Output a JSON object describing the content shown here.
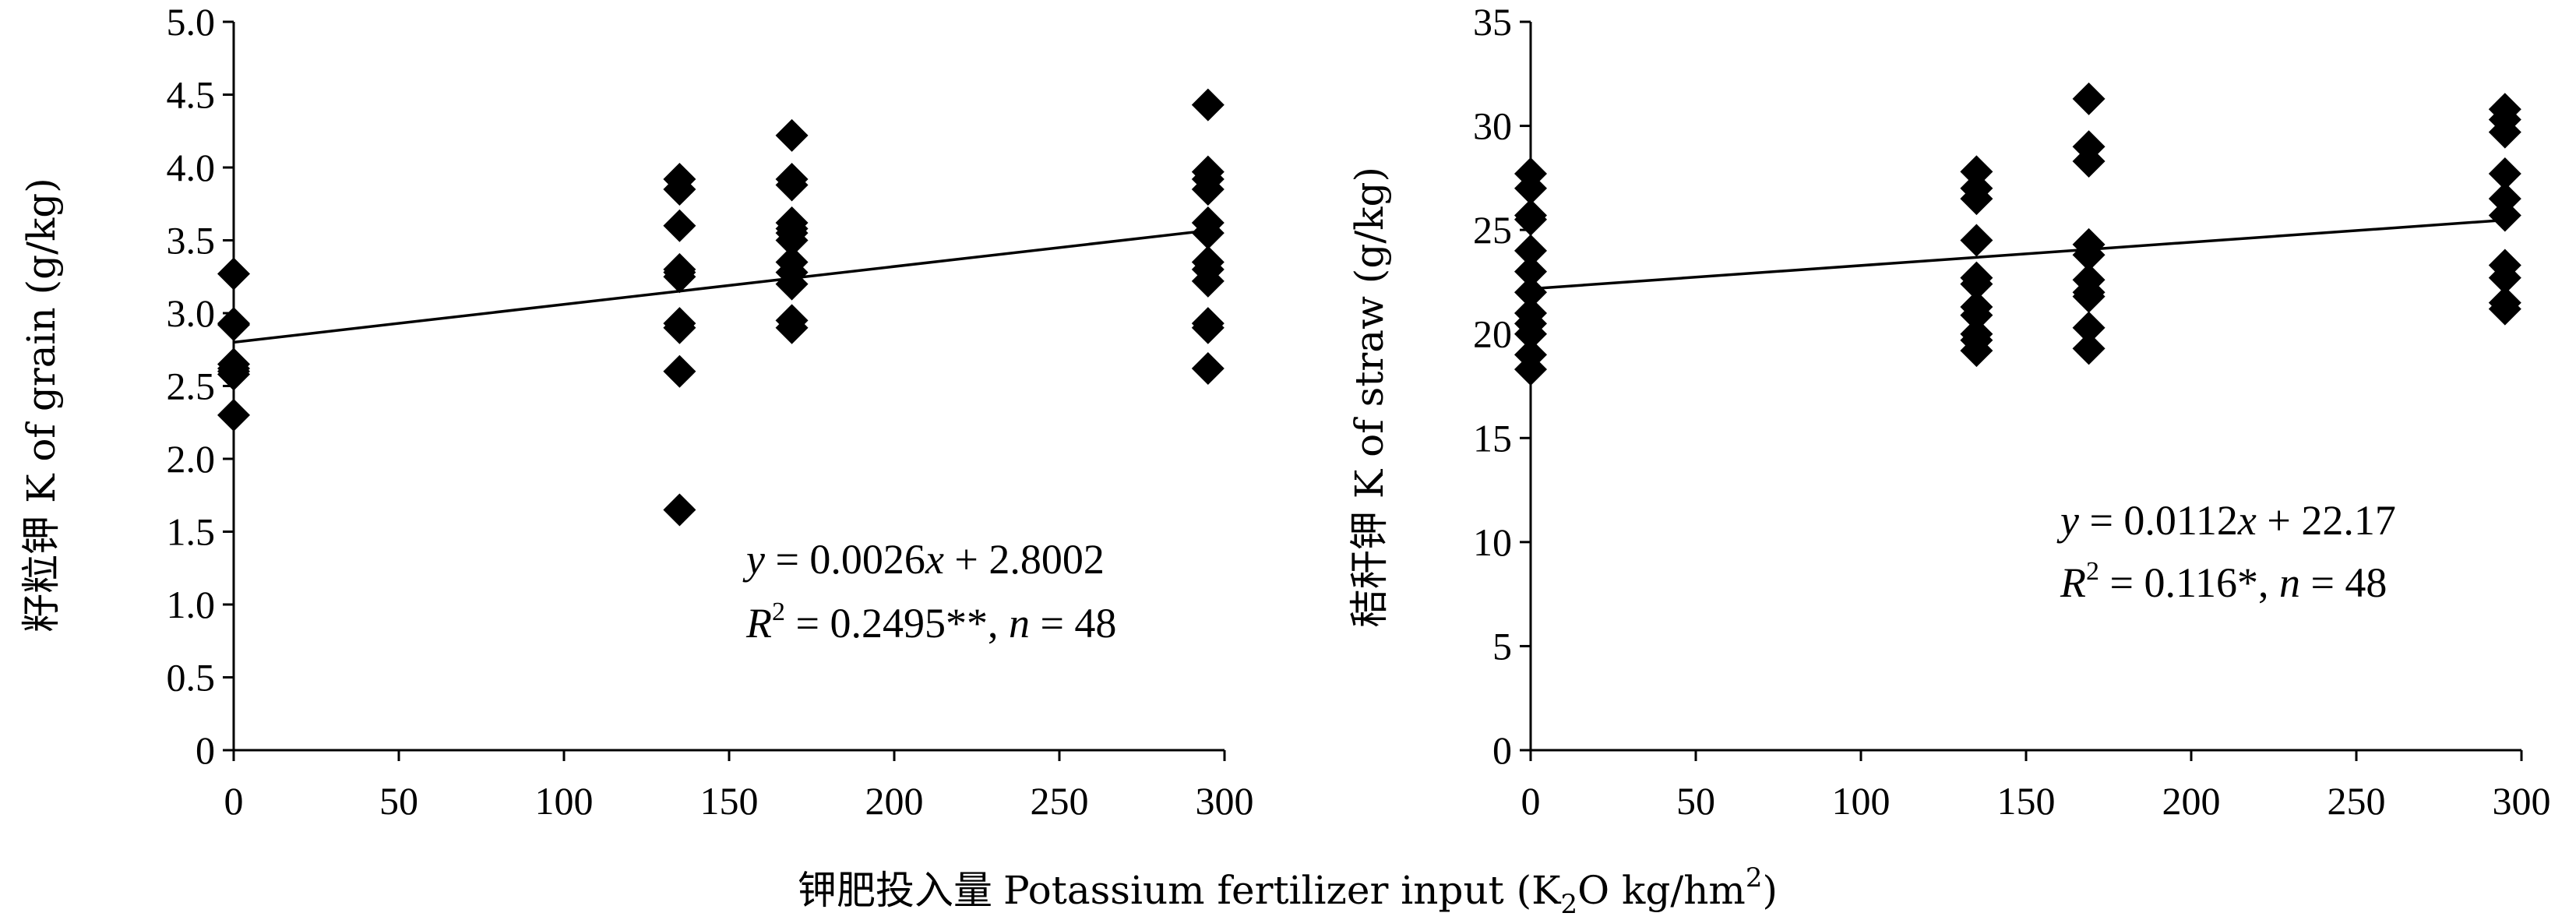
{
  "figure": {
    "shared_xlabel_cn": "钾肥投入量",
    "shared_xlabel_en": "Potassium  fertilizer input (K",
    "shared_xlabel_sub": "2",
    "shared_xlabel_mid": "O kg/hm",
    "shared_xlabel_sup": "2",
    "shared_xlabel_end": ")"
  },
  "chart_data": [
    {
      "type": "scatter",
      "ylabel": "籽粒钾 K of grain (g/kg)",
      "xlim": [
        0,
        300
      ],
      "ylim": [
        0,
        5.0
      ],
      "xticks": [
        "0",
        "50",
        "100",
        "150",
        "200",
        "250",
        "300"
      ],
      "yticks": [
        "0",
        "0.5",
        "1.0",
        "1.5",
        "2.0",
        "2.5",
        "3.0",
        "3.5",
        "4.0",
        "4.5",
        "5.0"
      ],
      "grid": false,
      "equation": {
        "y": "y",
        "rest": " = 0.0026",
        "x": "x",
        "tail": " + 2.8002"
      },
      "stats": {
        "r": "R",
        "sup": "2",
        "mid": " = 0.2495**, ",
        "n": "n",
        "tail": " = 48"
      },
      "trendline": {
        "slope": 0.0026,
        "intercept": 2.8002,
        "x_range": [
          0,
          295
        ]
      },
      "points": [
        {
          "x": 0,
          "y": 3.27
        },
        {
          "x": 0,
          "y": 2.93
        },
        {
          "x": 0,
          "y": 2.65
        },
        {
          "x": 0,
          "y": 2.6
        },
        {
          "x": 0,
          "y": 2.58
        },
        {
          "x": 0,
          "y": 2.3
        },
        {
          "x": 0,
          "y": 2.62
        },
        {
          "x": 0,
          "y": 2.92
        },
        {
          "x": 135,
          "y": 3.92
        },
        {
          "x": 135,
          "y": 3.85
        },
        {
          "x": 135,
          "y": 3.6
        },
        {
          "x": 135,
          "y": 3.3
        },
        {
          "x": 135,
          "y": 3.25
        },
        {
          "x": 135,
          "y": 2.93
        },
        {
          "x": 135,
          "y": 2.9
        },
        {
          "x": 135,
          "y": 2.6
        },
        {
          "x": 135,
          "y": 1.65
        },
        {
          "x": 135,
          "y": 3.28
        },
        {
          "x": 169,
          "y": 4.22
        },
        {
          "x": 169,
          "y": 3.92
        },
        {
          "x": 169,
          "y": 3.88
        },
        {
          "x": 169,
          "y": 3.62
        },
        {
          "x": 169,
          "y": 3.55
        },
        {
          "x": 169,
          "y": 3.5
        },
        {
          "x": 169,
          "y": 3.35
        },
        {
          "x": 169,
          "y": 3.28
        },
        {
          "x": 169,
          "y": 3.2
        },
        {
          "x": 169,
          "y": 2.95
        },
        {
          "x": 169,
          "y": 2.9
        },
        {
          "x": 169,
          "y": 3.58
        },
        {
          "x": 295,
          "y": 4.43
        },
        {
          "x": 295,
          "y": 3.97
        },
        {
          "x": 295,
          "y": 3.92
        },
        {
          "x": 295,
          "y": 3.85
        },
        {
          "x": 295,
          "y": 3.62
        },
        {
          "x": 295,
          "y": 3.55
        },
        {
          "x": 295,
          "y": 3.35
        },
        {
          "x": 295,
          "y": 3.3
        },
        {
          "x": 295,
          "y": 3.22
        },
        {
          "x": 295,
          "y": 2.93
        },
        {
          "x": 295,
          "y": 2.9
        },
        {
          "x": 295,
          "y": 2.62
        }
      ]
    },
    {
      "type": "scatter",
      "ylabel": "秸秆钾 K of straw (g/kg)",
      "xlim": [
        0,
        300
      ],
      "ylim": [
        0,
        35
      ],
      "xticks": [
        "0",
        "50",
        "100",
        "150",
        "200",
        "250",
        "300"
      ],
      "yticks": [
        "0",
        "5",
        "10",
        "15",
        "20",
        "25",
        "30",
        "35"
      ],
      "grid": false,
      "equation": {
        "y": "y",
        "rest": " = 0.0112",
        "x": "x",
        "tail": " + 22.17"
      },
      "stats": {
        "r": "R",
        "sup": "2",
        "mid": " = 0.116*, ",
        "n": "n",
        "tail": " = 48"
      },
      "trendline": {
        "slope": 0.0112,
        "intercept": 22.17,
        "x_range": [
          0,
          295
        ]
      },
      "points": [
        {
          "x": 0,
          "y": 27.7
        },
        {
          "x": 0,
          "y": 27.0
        },
        {
          "x": 0,
          "y": 25.7
        },
        {
          "x": 0,
          "y": 24.0
        },
        {
          "x": 0,
          "y": 23.0
        },
        {
          "x": 0,
          "y": 22.0
        },
        {
          "x": 0,
          "y": 21.0
        },
        {
          "x": 0,
          "y": 20.5
        },
        {
          "x": 0,
          "y": 20.0
        },
        {
          "x": 0,
          "y": 19.0
        },
        {
          "x": 0,
          "y": 18.3
        },
        {
          "x": 0,
          "y": 25.5
        },
        {
          "x": 135,
          "y": 27.8
        },
        {
          "x": 135,
          "y": 27.0
        },
        {
          "x": 135,
          "y": 26.5
        },
        {
          "x": 135,
          "y": 24.5
        },
        {
          "x": 135,
          "y": 22.7
        },
        {
          "x": 135,
          "y": 21.3
        },
        {
          "x": 135,
          "y": 20.9
        },
        {
          "x": 135,
          "y": 20.0
        },
        {
          "x": 135,
          "y": 19.7
        },
        {
          "x": 135,
          "y": 19.2
        },
        {
          "x": 135,
          "y": 22.4
        },
        {
          "x": 169,
          "y": 31.3
        },
        {
          "x": 169,
          "y": 29.0
        },
        {
          "x": 169,
          "y": 28.3
        },
        {
          "x": 169,
          "y": 24.3
        },
        {
          "x": 169,
          "y": 23.8
        },
        {
          "x": 169,
          "y": 22.6
        },
        {
          "x": 169,
          "y": 22.0
        },
        {
          "x": 169,
          "y": 20.3
        },
        {
          "x": 169,
          "y": 19.3
        },
        {
          "x": 169,
          "y": 21.8
        },
        {
          "x": 295,
          "y": 30.8
        },
        {
          "x": 295,
          "y": 30.3
        },
        {
          "x": 295,
          "y": 29.7
        },
        {
          "x": 295,
          "y": 27.7
        },
        {
          "x": 295,
          "y": 26.5
        },
        {
          "x": 295,
          "y": 25.7
        },
        {
          "x": 295,
          "y": 23.3
        },
        {
          "x": 295,
          "y": 22.7
        },
        {
          "x": 295,
          "y": 21.5
        },
        {
          "x": 295,
          "y": 21.2
        }
      ]
    }
  ]
}
